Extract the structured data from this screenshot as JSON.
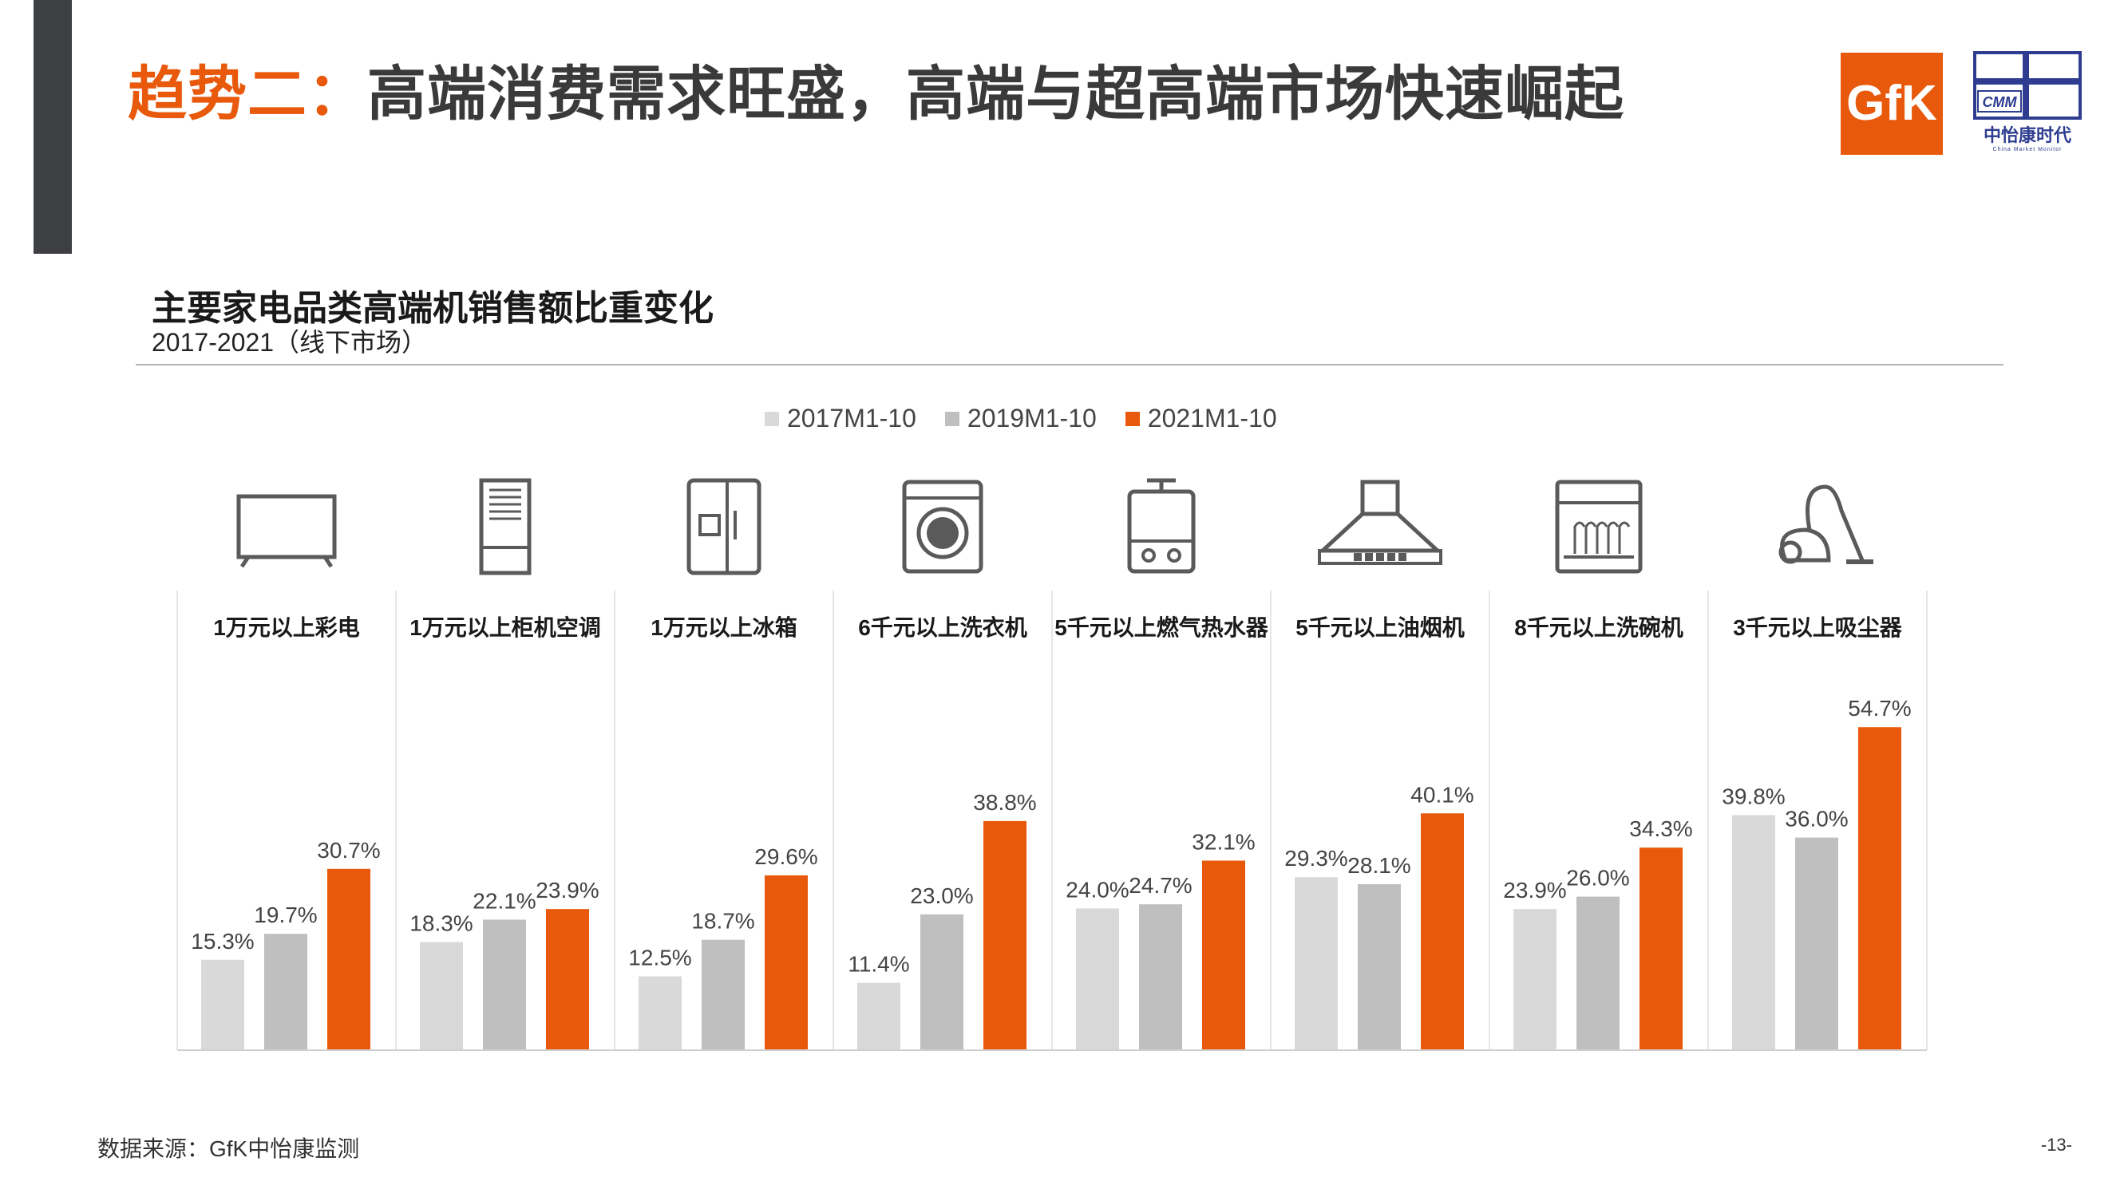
{
  "header": {
    "title_highlight": "趋势二：",
    "title_rest": "高端消费需求旺盛，高端与超高端市场快速崛起"
  },
  "logos": {
    "gfk_text": "GfK",
    "cmm_abbr": "CMM",
    "cmm_name": "中怡康时代",
    "cmm_sub": "China Market Monitor"
  },
  "colors": {
    "accent": "#e8590c",
    "series": [
      "#d9d9d9",
      "#bfbfbf",
      "#e8590c"
    ]
  },
  "chart_data": {
    "type": "bar",
    "title": "主要家电品类高端机销售额比重变化",
    "subtitle": "2017-2021（线下市场）",
    "legend_position": "top",
    "categories": [
      "1万元以上彩电",
      "1万元以上柜机空调",
      "1万元以上冰箱",
      "6千元以上洗衣机",
      "5千元以上燃气热水器",
      "5千元以上油烟机",
      "8千元以上洗碗机",
      "3千元以上吸尘器"
    ],
    "category_icons": [
      "tv-icon",
      "cabinet-ac-icon",
      "fridge-icon",
      "washer-icon",
      "water-heater-icon",
      "range-hood-icon",
      "dishwasher-icon",
      "vacuum-icon"
    ],
    "series": [
      {
        "name": "2017M1-10",
        "values": [
          15.3,
          18.3,
          12.5,
          11.4,
          24.0,
          29.3,
          23.9,
          39.8
        ]
      },
      {
        "name": "2019M1-10",
        "values": [
          19.7,
          22.1,
          18.7,
          23.0,
          24.7,
          28.1,
          26.0,
          36.0
        ]
      },
      {
        "name": "2021M1-10",
        "values": [
          30.7,
          23.9,
          29.6,
          38.8,
          32.1,
          40.1,
          34.3,
          54.7
        ]
      }
    ],
    "value_labels": [
      [
        "15.3%",
        "18.3%",
        "12.5%",
        "11.4%",
        "24.0%",
        "29.3%",
        "23.9%",
        "39.8%"
      ],
      [
        "19.7%",
        "22.1%",
        "18.7%",
        "23.0%",
        "24.7%",
        "28.1%",
        "26.0%",
        "36.0%"
      ],
      [
        "30.7%",
        "23.9%",
        "29.6%",
        "38.8%",
        "32.1%",
        "40.1%",
        "34.3%",
        "54.7%"
      ]
    ],
    "ylim": [
      0,
      60
    ],
    "grid": false
  },
  "footer": {
    "source": "数据来源：GfK中怡康监测",
    "page": "-13-"
  }
}
